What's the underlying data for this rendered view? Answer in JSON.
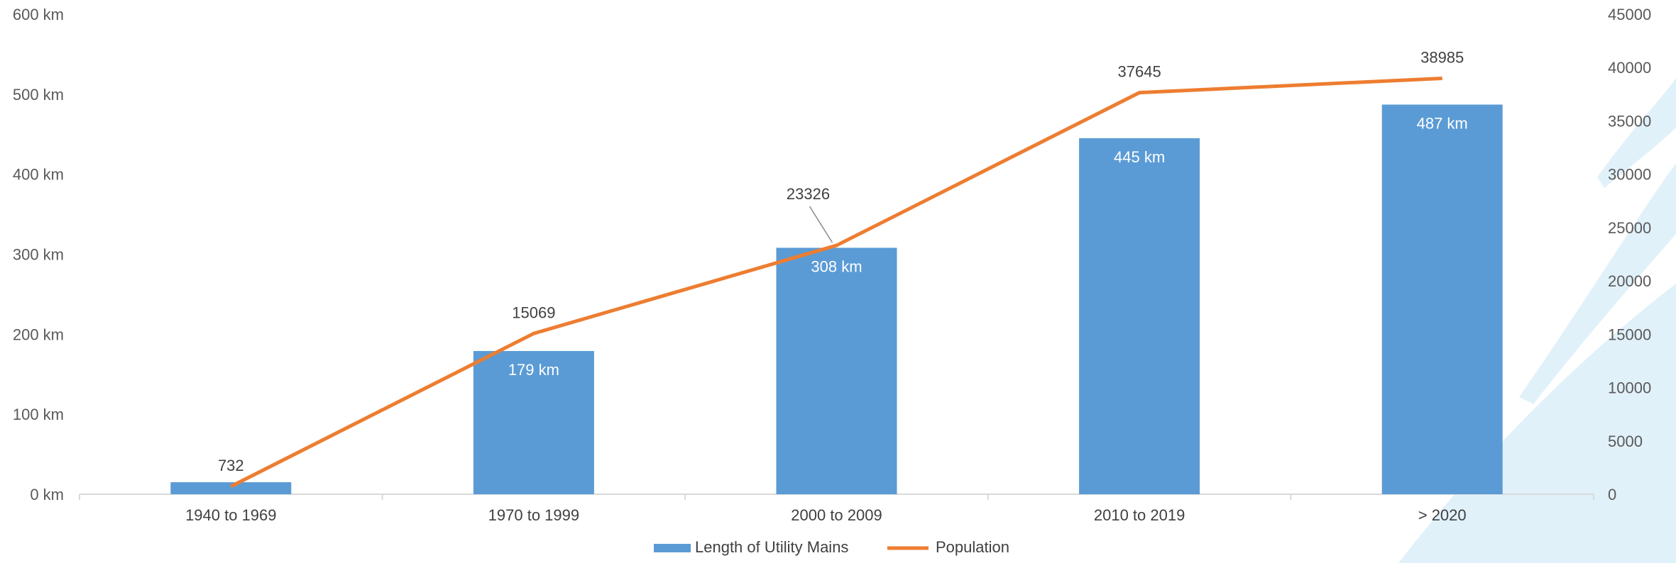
{
  "chart_data": {
    "type": "bar",
    "categories": [
      "1940 to 1969",
      "1970 to 1999",
      "2000 to 2009",
      "2010 to 2019",
      "> 2020"
    ],
    "series": [
      {
        "name": "Length of Utility Mains",
        "type": "bar",
        "axis": "left",
        "color": "#5B9BD5",
        "values": [
          15,
          179,
          308,
          445,
          487
        ],
        "data_labels": [
          "",
          "179 km",
          "308 km",
          "445 km",
          "487 km"
        ]
      },
      {
        "name": "Population",
        "type": "line",
        "axis": "right",
        "color": "#ED7D31",
        "values": [
          732,
          15069,
          23326,
          37645,
          38985
        ],
        "data_labels": [
          "732",
          "15069",
          "23326",
          "37645",
          "38985"
        ]
      }
    ],
    "y_left": {
      "ylim": [
        0,
        600
      ],
      "ticks": [
        "0 km",
        "100 km",
        "200 km",
        "300 km",
        "400 km",
        "500 km",
        "600 km"
      ]
    },
    "y_right": {
      "ylim": [
        0,
        45000
      ],
      "ticks": [
        "0",
        "5000",
        "10000",
        "15000",
        "20000",
        "25000",
        "30000",
        "35000",
        "40000",
        "45000"
      ]
    },
    "legend": {
      "position": "bottom",
      "items": [
        "Length of Utility Mains",
        "Population"
      ]
    },
    "grid": false,
    "background_accent_color": "#E1F1FA",
    "axis_color": "#D9D9D9"
  }
}
